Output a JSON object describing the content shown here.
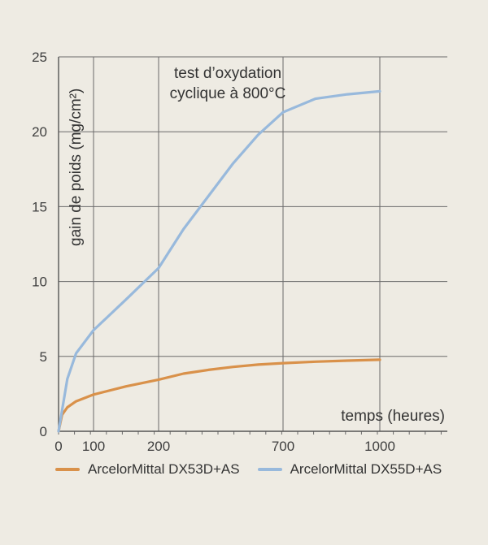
{
  "chart_data": {
    "type": "line",
    "title_lines": [
      "test d’oxydation",
      "cyclique à 800°C"
    ],
    "xlabel": "temps (heures)",
    "ylabel": "gain de poids (mg/cm²)",
    "ylim": [
      0,
      25
    ],
    "yticks": [
      0,
      5,
      10,
      15,
      20,
      25
    ],
    "xticks": [
      "0",
      "100",
      "200",
      "700",
      "1000"
    ],
    "grid": true,
    "legend_position": "bottom",
    "series": [
      {
        "name": "ArcelorMittal DX53D+AS",
        "color": "#d9914a",
        "points": [
          [
            0,
            0
          ],
          [
            10,
            1.1
          ],
          [
            25,
            1.6
          ],
          [
            50,
            2.0
          ],
          [
            100,
            2.45
          ],
          [
            150,
            3.0
          ],
          [
            200,
            3.45
          ],
          [
            300,
            3.85
          ],
          [
            400,
            4.1
          ],
          [
            500,
            4.3
          ],
          [
            600,
            4.45
          ],
          [
            700,
            4.55
          ],
          [
            800,
            4.65
          ],
          [
            900,
            4.72
          ],
          [
            1000,
            4.78
          ]
        ]
      },
      {
        "name": "ArcelorMittal DX55D+AS",
        "color": "#98b9dc",
        "points": [
          [
            0,
            0
          ],
          [
            25,
            3.5
          ],
          [
            50,
            5.2
          ],
          [
            100,
            6.75
          ],
          [
            150,
            8.8
          ],
          [
            200,
            10.9
          ],
          [
            300,
            13.5
          ],
          [
            400,
            15.7
          ],
          [
            500,
            17.9
          ],
          [
            600,
            19.8
          ],
          [
            700,
            21.3
          ],
          [
            800,
            22.2
          ],
          [
            900,
            22.5
          ],
          [
            1000,
            22.7
          ]
        ]
      }
    ]
  }
}
